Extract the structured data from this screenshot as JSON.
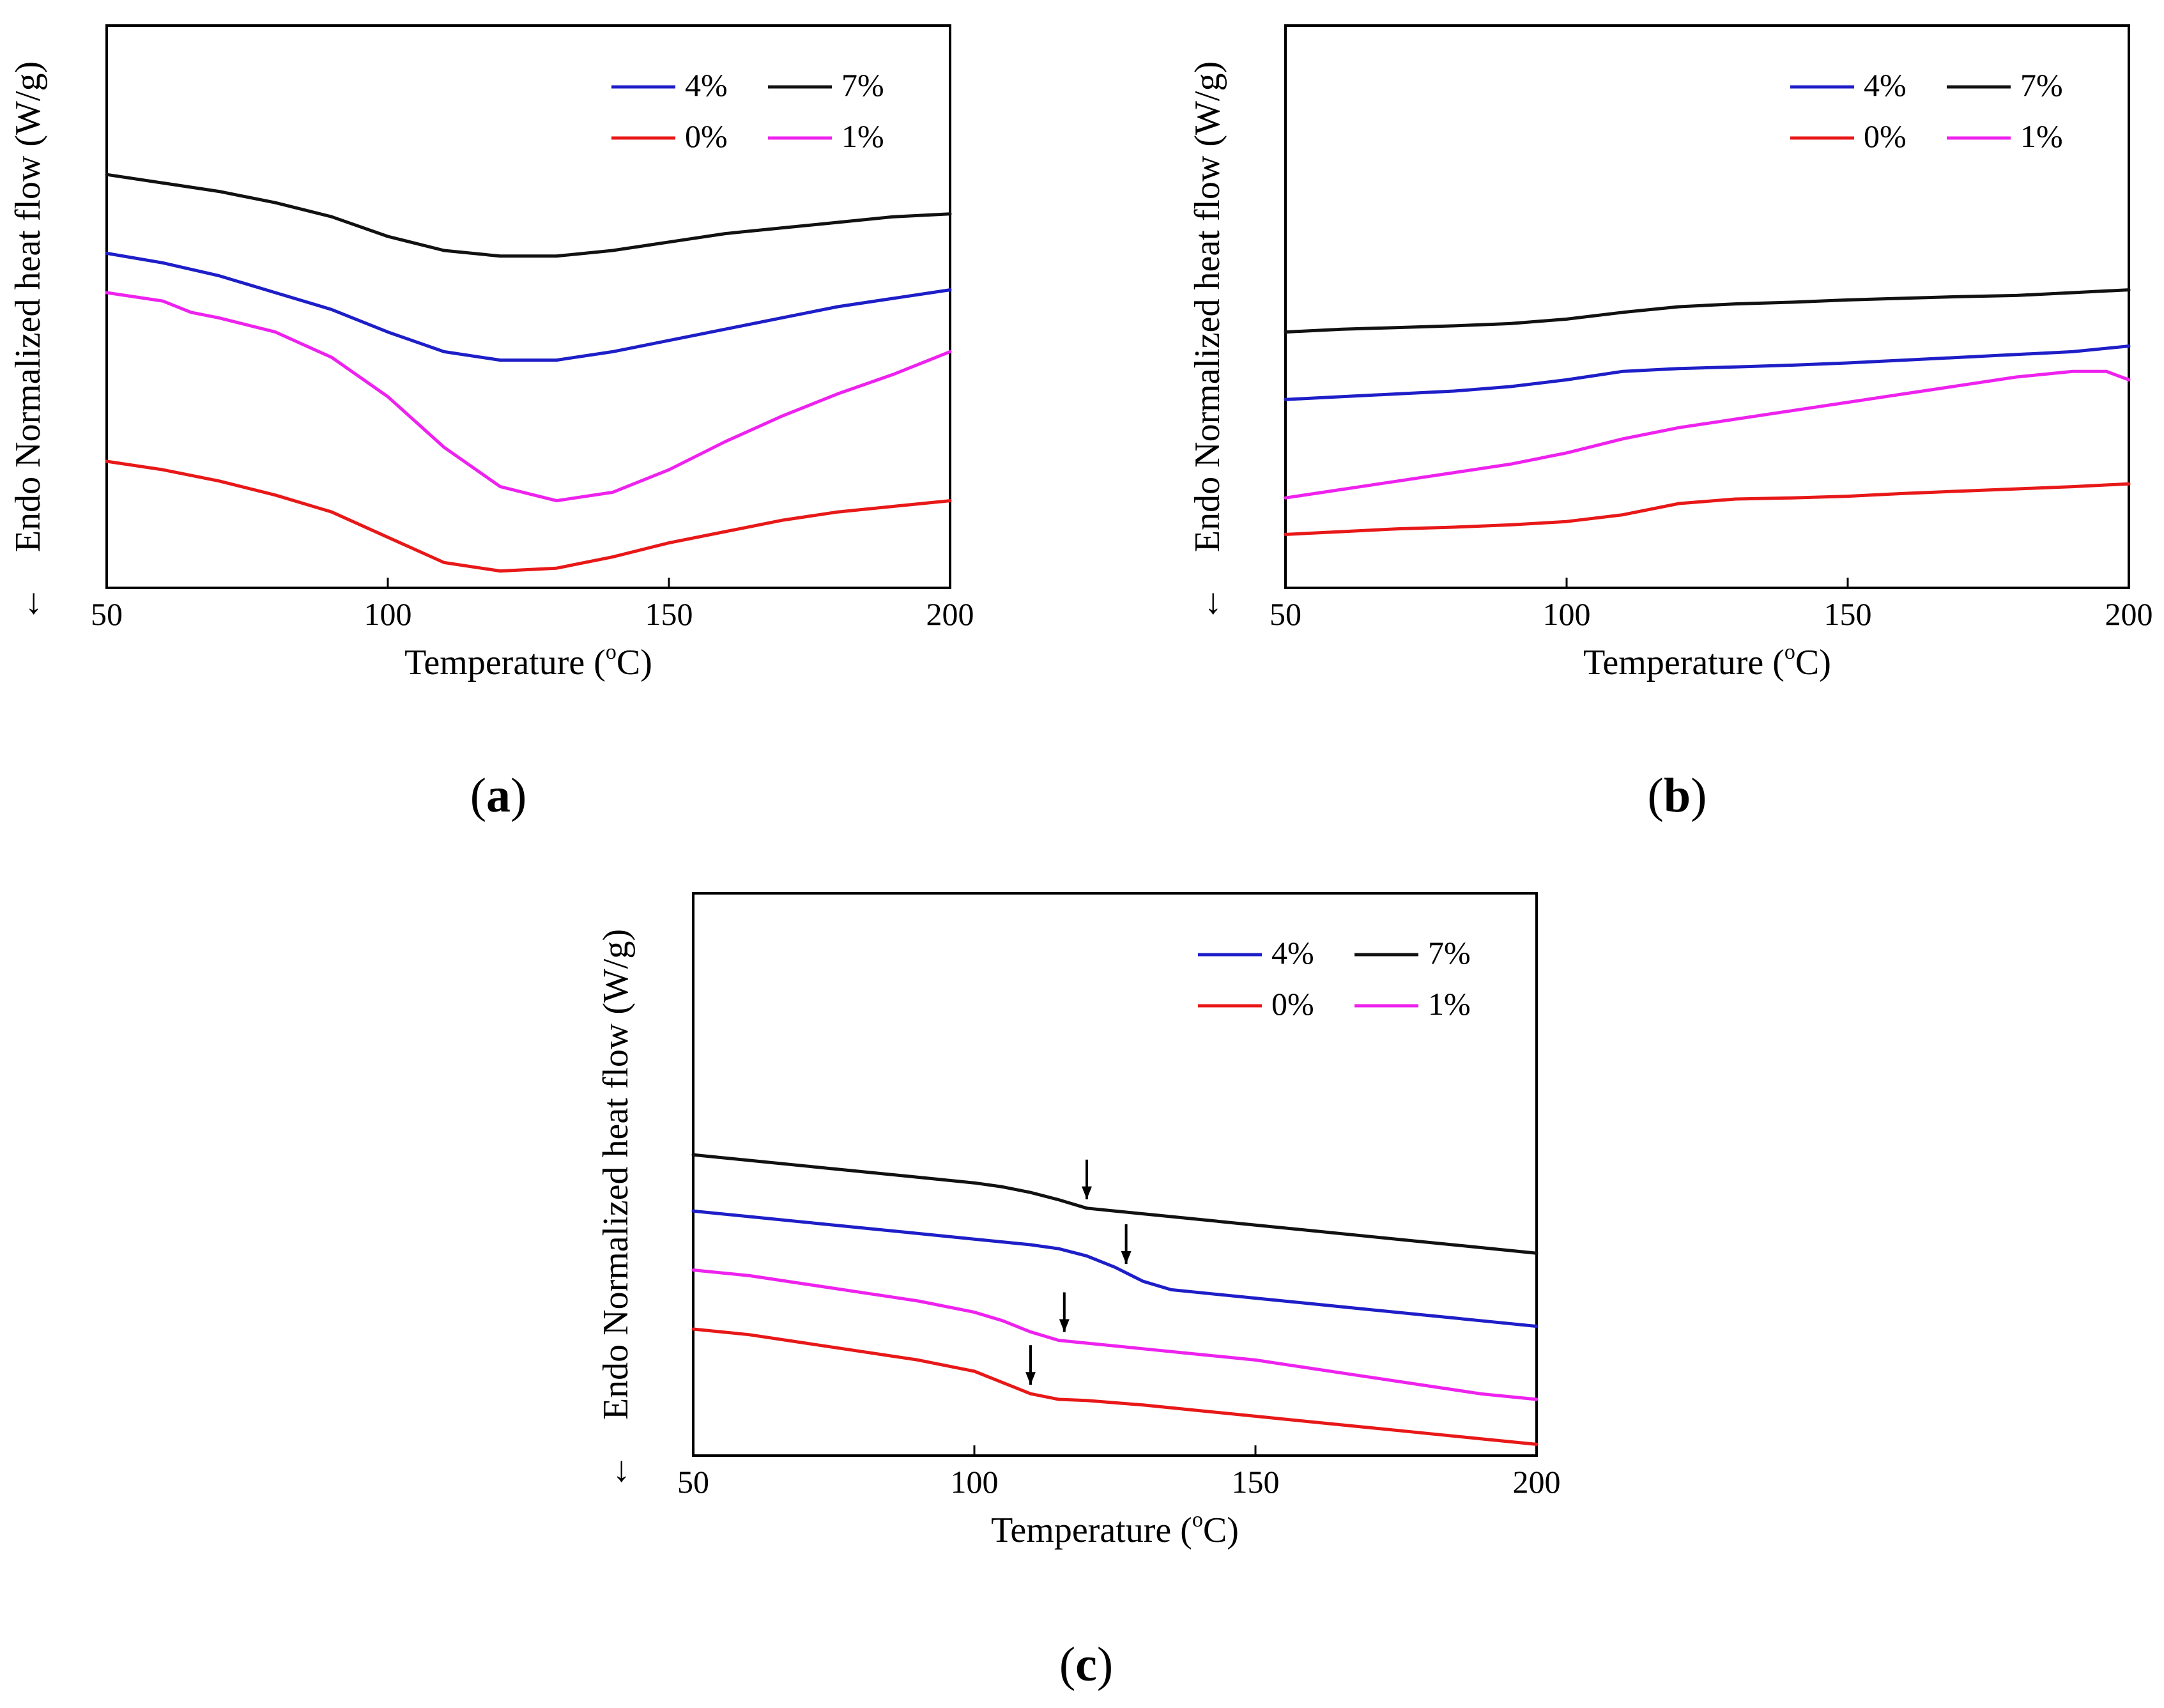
{
  "figure_labels": [
    "(a)",
    "(b)",
    "(c)"
  ],
  "chart_data": [
    {
      "id": "a",
      "type": "line",
      "panel_label": "(a)",
      "xlabel_main": "Temperature (",
      "xlabel_sup": "o",
      "xlabel_end": "C)",
      "ylabel": "Endo Normalized heat flow (W/g)",
      "ylabel_arrow": "←",
      "xlim": [
        50,
        200
      ],
      "ylim": [
        0,
        1
      ],
      "xticks": [
        50,
        100,
        150,
        200
      ],
      "yticks": [],
      "legend_position": "top-right",
      "legend_order": [
        "4%",
        "7%",
        "0%",
        "1%"
      ],
      "series": [
        {
          "name": "4%",
          "color": "#1e1ec8",
          "x": [
            50,
            60,
            70,
            80,
            90,
            100,
            110,
            120,
            130,
            140,
            150,
            160,
            170,
            180,
            190,
            200
          ],
          "y": [
            0.595,
            0.578,
            0.555,
            0.525,
            0.495,
            0.455,
            0.42,
            0.405,
            0.405,
            0.42,
            0.44,
            0.46,
            0.48,
            0.5,
            0.515,
            0.53
          ]
        },
        {
          "name": "7%",
          "color": "#111111",
          "x": [
            50,
            60,
            70,
            80,
            90,
            100,
            110,
            120,
            130,
            140,
            150,
            160,
            170,
            180,
            190,
            200
          ],
          "y": [
            0.735,
            0.72,
            0.705,
            0.685,
            0.66,
            0.625,
            0.6,
            0.59,
            0.59,
            0.6,
            0.615,
            0.63,
            0.64,
            0.65,
            0.66,
            0.665
          ]
        },
        {
          "name": "0%",
          "color": "#e81818",
          "x": [
            50,
            60,
            70,
            80,
            90,
            100,
            110,
            120,
            130,
            140,
            150,
            160,
            170,
            180,
            190,
            200
          ],
          "y": [
            0.225,
            0.21,
            0.19,
            0.165,
            0.135,
            0.09,
            0.045,
            0.03,
            0.035,
            0.055,
            0.08,
            0.1,
            0.12,
            0.135,
            0.145,
            0.155
          ]
        },
        {
          "name": "1%",
          "color": "#ee22ee",
          "x": [
            50,
            60,
            65,
            70,
            80,
            90,
            100,
            110,
            120,
            130,
            140,
            150,
            160,
            170,
            180,
            190,
            200
          ],
          "y": [
            0.525,
            0.51,
            0.49,
            0.48,
            0.455,
            0.41,
            0.34,
            0.25,
            0.18,
            0.155,
            0.17,
            0.21,
            0.26,
            0.305,
            0.345,
            0.38,
            0.42
          ]
        }
      ],
      "markers": []
    },
    {
      "id": "b",
      "type": "line",
      "panel_label": "(b)",
      "xlabel_main": "Temperature (",
      "xlabel_sup": "o",
      "xlabel_end": "C)",
      "ylabel": "Endo Normalized heat flow (W/g)",
      "ylabel_arrow": "←",
      "xlim": [
        50,
        200
      ],
      "ylim": [
        0,
        1
      ],
      "xticks": [
        50,
        100,
        150,
        200
      ],
      "yticks": [],
      "legend_position": "top-right",
      "legend_order": [
        "4%",
        "7%",
        "0%",
        "1%"
      ],
      "series": [
        {
          "name": "4%",
          "color": "#1e1ec8",
          "x": [
            50,
            60,
            70,
            80,
            90,
            100,
            110,
            120,
            130,
            140,
            150,
            160,
            170,
            180,
            190,
            200
          ],
          "y": [
            0.335,
            0.34,
            0.345,
            0.35,
            0.358,
            0.37,
            0.385,
            0.39,
            0.393,
            0.396,
            0.4,
            0.405,
            0.41,
            0.415,
            0.42,
            0.43
          ]
        },
        {
          "name": "7%",
          "color": "#111111",
          "x": [
            50,
            60,
            70,
            80,
            90,
            100,
            110,
            120,
            130,
            140,
            150,
            160,
            170,
            180,
            190,
            200
          ],
          "y": [
            0.455,
            0.46,
            0.463,
            0.466,
            0.47,
            0.478,
            0.49,
            0.5,
            0.505,
            0.508,
            0.512,
            0.515,
            0.518,
            0.52,
            0.525,
            0.53
          ]
        },
        {
          "name": "0%",
          "color": "#e81818",
          "x": [
            50,
            60,
            70,
            80,
            90,
            100,
            110,
            120,
            130,
            140,
            150,
            160,
            170,
            180,
            190,
            200
          ],
          "y": [
            0.095,
            0.1,
            0.105,
            0.108,
            0.112,
            0.118,
            0.13,
            0.15,
            0.158,
            0.16,
            0.163,
            0.168,
            0.172,
            0.176,
            0.18,
            0.185
          ]
        },
        {
          "name": "1%",
          "color": "#ee22ee",
          "x": [
            50,
            60,
            70,
            80,
            90,
            100,
            110,
            120,
            130,
            140,
            150,
            160,
            170,
            180,
            190,
            196,
            200
          ],
          "y": [
            0.16,
            0.175,
            0.19,
            0.205,
            0.22,
            0.24,
            0.265,
            0.285,
            0.3,
            0.315,
            0.33,
            0.345,
            0.36,
            0.375,
            0.385,
            0.385,
            0.37
          ]
        }
      ],
      "markers": []
    },
    {
      "id": "c",
      "type": "line",
      "panel_label": "(c)",
      "xlabel_main": "Temperature (",
      "xlabel_sup": "o",
      "xlabel_end": "C)",
      "ylabel": "Endo Normalized heat flow (W/g)",
      "ylabel_arrow": "←",
      "xlim": [
        50,
        200
      ],
      "ylim": [
        0,
        1
      ],
      "xticks": [
        50,
        100,
        150,
        200
      ],
      "yticks": [],
      "legend_position": "top-right",
      "legend_order": [
        "4%",
        "7%",
        "0%",
        "1%"
      ],
      "series": [
        {
          "name": "4%",
          "color": "#1e1ec8",
          "x": [
            50,
            60,
            70,
            80,
            90,
            100,
            110,
            115,
            120,
            125,
            130,
            135,
            140,
            150,
            160,
            170,
            180,
            190,
            200
          ],
          "y": [
            0.435,
            0.425,
            0.415,
            0.405,
            0.395,
            0.385,
            0.375,
            0.368,
            0.355,
            0.335,
            0.31,
            0.295,
            0.29,
            0.28,
            0.27,
            0.26,
            0.25,
            0.24,
            0.23
          ]
        },
        {
          "name": "7%",
          "color": "#111111",
          "x": [
            50,
            60,
            70,
            80,
            90,
            100,
            105,
            110,
            115,
            120,
            125,
            130,
            140,
            150,
            160,
            170,
            180,
            190,
            200
          ],
          "y": [
            0.535,
            0.525,
            0.515,
            0.505,
            0.495,
            0.485,
            0.478,
            0.468,
            0.455,
            0.44,
            0.435,
            0.43,
            0.42,
            0.41,
            0.4,
            0.39,
            0.38,
            0.37,
            0.36
          ]
        },
        {
          "name": "0%",
          "color": "#e81818",
          "x": [
            50,
            60,
            70,
            80,
            90,
            100,
            105,
            110,
            115,
            120,
            130,
            140,
            150,
            160,
            170,
            180,
            190,
            200
          ],
          "y": [
            0.225,
            0.215,
            0.2,
            0.185,
            0.17,
            0.15,
            0.13,
            0.11,
            0.1,
            0.098,
            0.09,
            0.08,
            0.07,
            0.06,
            0.05,
            0.04,
            0.03,
            0.02
          ]
        },
        {
          "name": "1%",
          "color": "#ee22ee",
          "x": [
            50,
            60,
            70,
            80,
            90,
            100,
            105,
            110,
            115,
            120,
            130,
            140,
            150,
            160,
            170,
            180,
            190,
            200
          ],
          "y": [
            0.33,
            0.32,
            0.305,
            0.29,
            0.275,
            0.255,
            0.24,
            0.22,
            0.205,
            0.2,
            0.19,
            0.18,
            0.17,
            0.155,
            0.14,
            0.125,
            0.11,
            0.1
          ]
        }
      ],
      "markers": [
        {
          "series": "7%",
          "x": 120
        },
        {
          "series": "4%",
          "x": 127
        },
        {
          "series": "1%",
          "x": 116
        },
        {
          "series": "0%",
          "x": 110
        }
      ]
    }
  ]
}
